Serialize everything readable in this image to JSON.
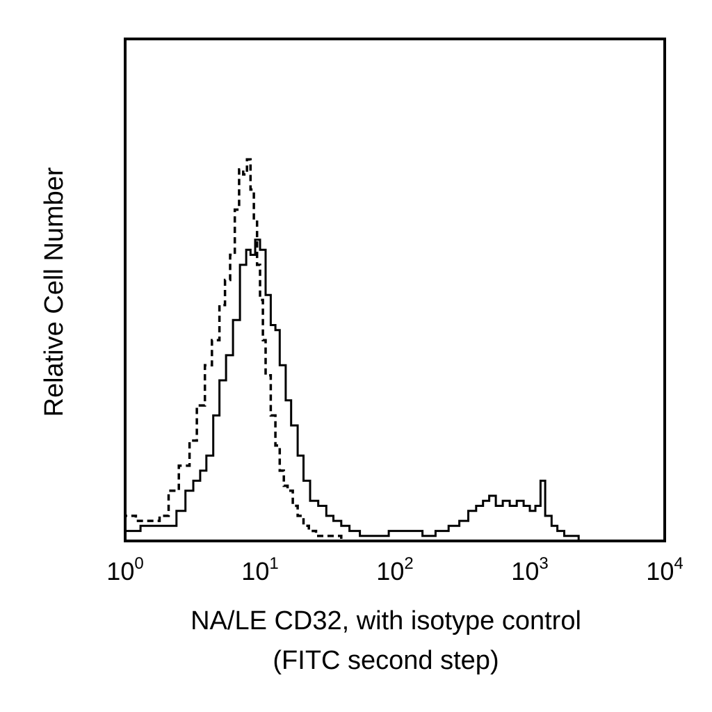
{
  "chart_data": {
    "type": "line",
    "title": "",
    "xlabel_line1": "NA/LE CD32, with isotype control",
    "xlabel_line2": "(FITC second step)",
    "ylabel": "Relative Cell Number",
    "x_scale": "log",
    "xlim": [
      1,
      10000
    ],
    "ylim": [
      0,
      100
    ],
    "x_ticks": [
      {
        "base": "10",
        "exp": "0",
        "value": 1
      },
      {
        "base": "10",
        "exp": "1",
        "value": 10
      },
      {
        "base": "10",
        "exp": "2",
        "value": 100
      },
      {
        "base": "10",
        "exp": "3",
        "value": 1000
      },
      {
        "base": "10",
        "exp": "4",
        "value": 10000
      }
    ],
    "grid": false,
    "legend": "none",
    "series": [
      {
        "style": "solid",
        "color": "#000000",
        "x": [
          1.0,
          1.3,
          1.6,
          2.0,
          2.4,
          2.8,
          3.2,
          3.6,
          4.0,
          4.5,
          5.0,
          5.6,
          6.3,
          7.1,
          7.9,
          8.5,
          9.2,
          10.0,
          11.0,
          12.0,
          13.0,
          14.0,
          15.5,
          17.0,
          19.0,
          21.0,
          23.5,
          27.0,
          31.0,
          35.0,
          40.0,
          46.0,
          55.0,
          70.0,
          90.0,
          110.0,
          130.0,
          160.0,
          200.0,
          250.0,
          300.0,
          350.0,
          400.0,
          450.0,
          500.0,
          560.0,
          630.0,
          710.0,
          800.0,
          900.0,
          1000.0,
          1100.0,
          1200.0,
          1300.0,
          1450.0,
          1600.0,
          1800.0,
          2000.0,
          2300.0
        ],
        "y": [
          2,
          3,
          3,
          3,
          6,
          10,
          12,
          14,
          17,
          25,
          32,
          37,
          44,
          55,
          58,
          57,
          60,
          58,
          49,
          43,
          42,
          35,
          28,
          23,
          17,
          12,
          8,
          7,
          5,
          4,
          3,
          2,
          1,
          1,
          2,
          2,
          2,
          1,
          2,
          3,
          4,
          6,
          7,
          8,
          9,
          7,
          8,
          7,
          8,
          7,
          6,
          7,
          12,
          5,
          3,
          2,
          1,
          1,
          0
        ]
      },
      {
        "style": "dashed",
        "color": "#000000",
        "x": [
          1.0,
          1.2,
          1.5,
          1.8,
          2.1,
          2.5,
          3.0,
          3.4,
          3.9,
          4.4,
          5.0,
          5.5,
          6.0,
          6.5,
          7.0,
          7.5,
          8.0,
          8.5,
          9.0,
          9.5,
          10.0,
          10.5,
          11.0,
          12.0,
          13.0,
          14.0,
          15.0,
          16.0,
          17.5,
          19.0,
          21.0,
          23.0,
          26.0,
          30.0,
          35.0,
          40.0
        ],
        "y": [
          5,
          4,
          4,
          5,
          10,
          15,
          20,
          27,
          35,
          40,
          47,
          52,
          57,
          66,
          74,
          73,
          76,
          70,
          64,
          55,
          48,
          40,
          33,
          25,
          19,
          14,
          11,
          10,
          7,
          5,
          3,
          2,
          1,
          1,
          1,
          0
        ]
      }
    ]
  }
}
